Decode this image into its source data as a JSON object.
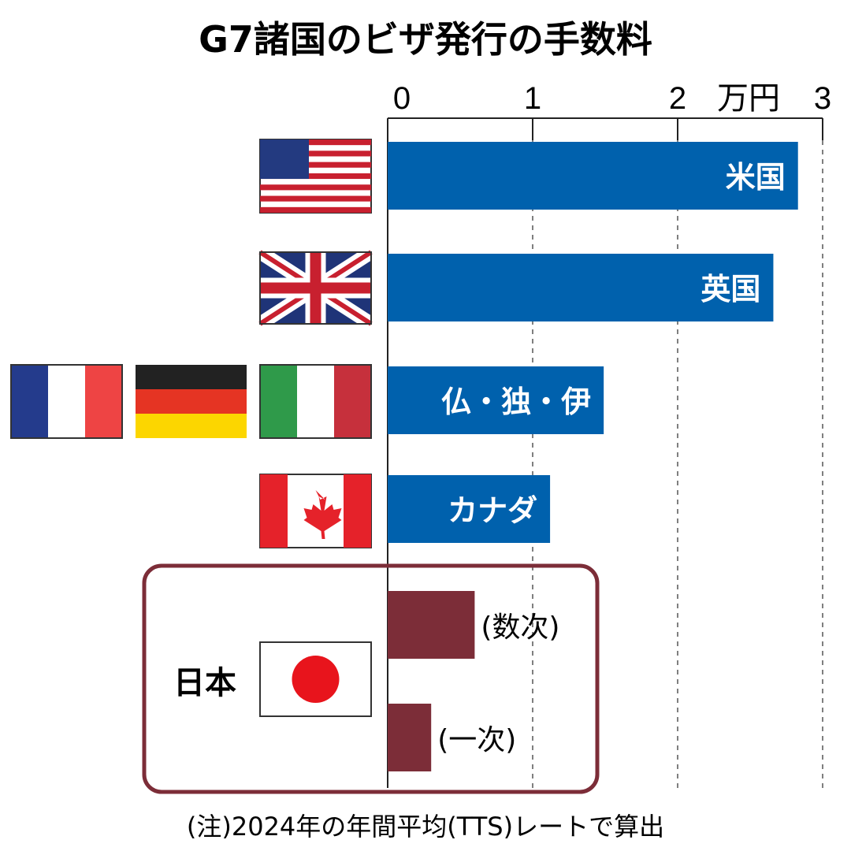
{
  "chart_data": {
    "type": "bar",
    "orientation": "horizontal",
    "title": "G7諸国のビザ発行の手数料",
    "unit": "万円",
    "xlim": [
      0,
      3
    ],
    "ticks": [
      "0",
      "1",
      "2",
      "3"
    ],
    "grid": true,
    "categories": [
      "米国",
      "英国",
      "仏・独・伊",
      "カナダ",
      "(数次)",
      "(一次)"
    ],
    "values": [
      2.83,
      2.66,
      1.49,
      1.12,
      0.6,
      0.3
    ],
    "group_label": "日本",
    "note": "(注)2024年の年間平均(TTS)レートで算出",
    "colors": {
      "bar": "#0061ad",
      "japan": "#7c2d38",
      "japan_box": "#7c2d38"
    },
    "flags": [
      "us-flag",
      "uk-flag",
      "france-flag",
      "germany-flag",
      "italy-flag",
      "canada-flag",
      "japan-flag"
    ]
  }
}
